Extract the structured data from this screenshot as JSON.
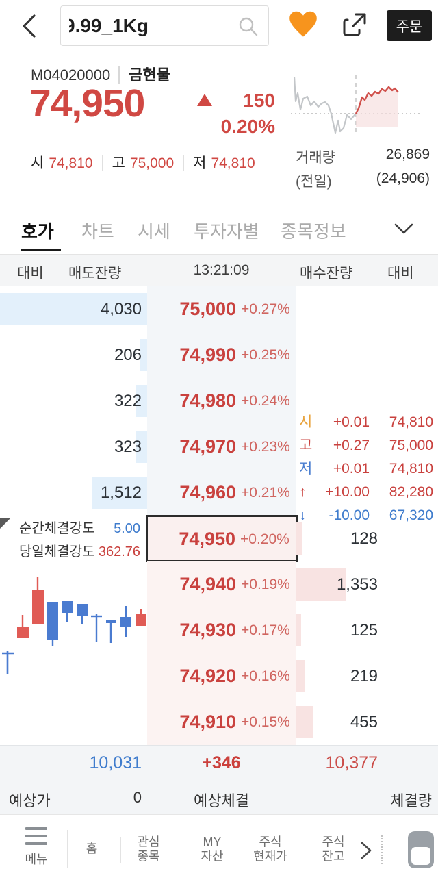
{
  "header": {
    "search_value": "9.99_1Kg",
    "order_button": "주문"
  },
  "stock": {
    "code": "M04020000",
    "name": "금현물",
    "price": "74,950",
    "change": "150",
    "change_pct": "0.20%",
    "open_label": "시",
    "open": "74,810",
    "high_label": "고",
    "high": "75,000",
    "low_label": "저",
    "low": "74,810",
    "volume_label": "거래량",
    "volume_prev_label": "(전일)",
    "volume": "26,869",
    "volume_prev": "(24,906)"
  },
  "tabs": [
    {
      "label": "호가",
      "active": true
    },
    {
      "label": "차트",
      "active": false
    },
    {
      "label": "시세",
      "active": false
    },
    {
      "label": "투자자별",
      "active": false
    },
    {
      "label": "종목정보",
      "active": false
    }
  ],
  "orderbook": {
    "time": "13:21:09",
    "col_diff_left": "대비",
    "col_ask": "매도잔량",
    "col_bid": "매수잔량",
    "col_diff_right": "대비",
    "asks": [
      {
        "qty": "4,030",
        "price": "75,000",
        "pct": "+0.27%",
        "bar": 215
      },
      {
        "qty": "206",
        "price": "74,990",
        "pct": "+0.25%",
        "bar": 11
      },
      {
        "qty": "322",
        "price": "74,980",
        "pct": "+0.24%",
        "bar": 17
      },
      {
        "qty": "323",
        "price": "74,970",
        "pct": "+0.23%",
        "bar": 17
      },
      {
        "qty": "1,512",
        "price": "74,960",
        "pct": "+0.21%",
        "bar": 80
      }
    ],
    "current": {
      "qty": "128",
      "price": "74,950",
      "pct": "+0.20%",
      "bar": 8
    },
    "bids": [
      {
        "qty": "1,353",
        "price": "74,940",
        "pct": "+0.19%",
        "bar": 72
      },
      {
        "qty": "125",
        "price": "74,930",
        "pct": "+0.17%",
        "bar": 7
      },
      {
        "qty": "219",
        "price": "74,920",
        "pct": "+0.16%",
        "bar": 12
      },
      {
        "qty": "455",
        "price": "74,910",
        "pct": "+0.15%",
        "bar": 24
      }
    ],
    "stats": [
      {
        "label": "시",
        "label_color": "#e8a33d",
        "change": "+0.01",
        "value": "74,810",
        "color": "#c9413e"
      },
      {
        "label": "고",
        "label_color": "#c9413e",
        "change": "+0.27",
        "value": "75,000",
        "color": "#c9413e"
      },
      {
        "label": "저",
        "label_color": "#4a7ed0",
        "change": "+0.01",
        "value": "74,810",
        "color": "#c9413e"
      },
      {
        "label": "↑",
        "label_color": "#c9413e",
        "change": "+10.00",
        "value": "82,280",
        "color": "#c9413e"
      },
      {
        "label": "↓",
        "label_color": "#4a7ed0",
        "change": "-10.00",
        "value": "67,320",
        "color": "#3f7ccd"
      }
    ],
    "strength": {
      "inst_label": "순간체결강도",
      "inst_value": "5.00",
      "day_label": "당일체결강도",
      "day_value": "362.76"
    },
    "totals": {
      "ask_total": "10,031",
      "net": "+346",
      "bid_total": "10,377"
    },
    "expected": {
      "price_label": "예상가",
      "price_value": "0",
      "exec_label": "예상체결",
      "qty_label": "체결량"
    }
  },
  "bottom_nav": {
    "menu_label": "메뉴",
    "items": [
      "홈",
      "관심\n종목",
      "MY\n자산",
      "주식\n현재가",
      "주식\n잔고"
    ]
  },
  "colors": {
    "up_red": "#c9413e",
    "down_blue": "#3f7ccd",
    "ask_bar": "#e3f0fb",
    "bid_bar": "#f8e3e2",
    "accent_orange": "#f7941d"
  }
}
